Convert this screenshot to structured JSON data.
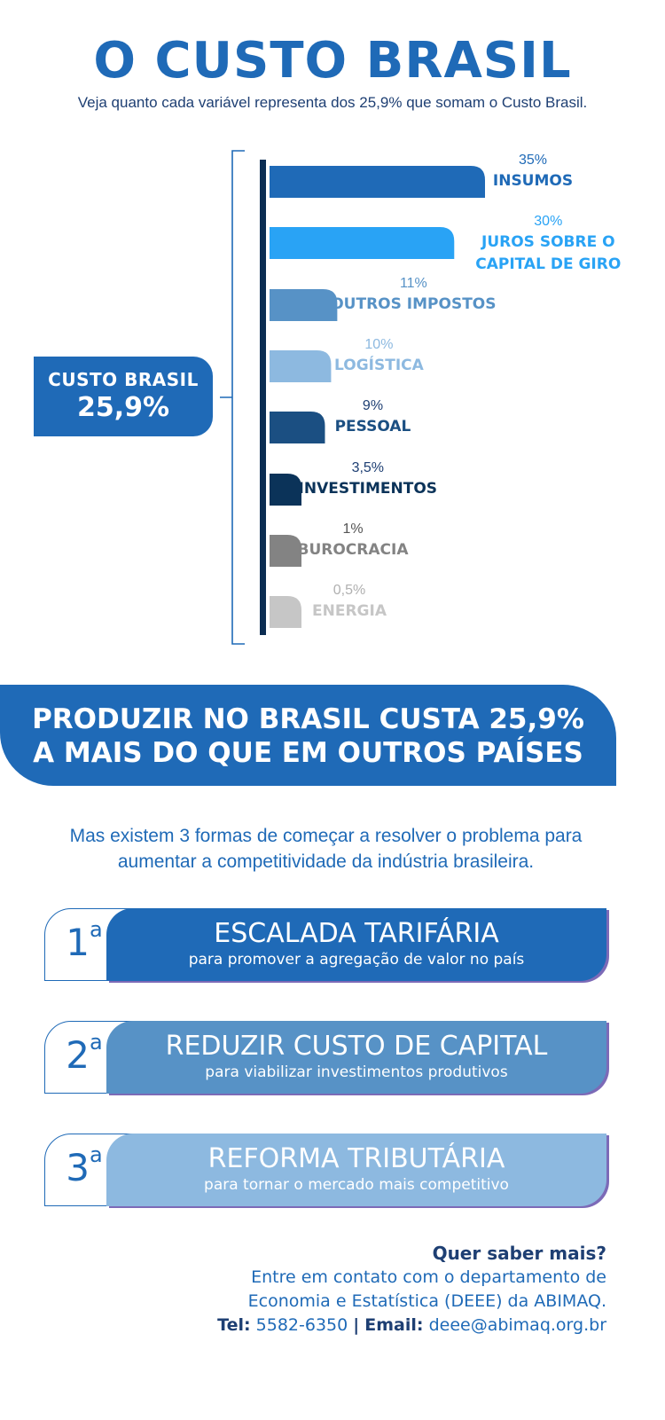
{
  "header": {
    "title": "O CUSTO BRASIL",
    "subtitle": "Veja quanto cada variável representa dos 25,9% que somam o Custo Brasil."
  },
  "total_box": {
    "label": "CUSTO BRASIL",
    "value": "25,9%"
  },
  "chart_data": {
    "type": "bar",
    "orientation": "horizontal",
    "categories": [
      "INSUMOS",
      "JUROS SOBRE O CAPITAL DE GIRO",
      "OUTROS IMPOSTOS",
      "LOGÍSTICA",
      "PESSOAL",
      "INVESTIMENTOS",
      "BUROCRACIA",
      "ENERGIA"
    ],
    "values": [
      35,
      30,
      11,
      10,
      9,
      3.5,
      1,
      0.5
    ],
    "value_labels": [
      "35%",
      "30%",
      "11%",
      "10%",
      "9%",
      "3,5%",
      "1%",
      "0,5%"
    ],
    "label_lines": [
      [
        "INSUMOS"
      ],
      [
        "JUROS SOBRE O",
        "CAPITAL DE GIRO"
      ],
      [
        "OUTROS IMPOSTOS"
      ],
      [
        "LOGÍSTICA"
      ],
      [
        "PESSOAL"
      ],
      [
        "INVESTIMENTOS"
      ],
      [
        "BUROCRACIA"
      ],
      [
        "ENERGIA"
      ]
    ],
    "colors": [
      "#1f6ab7",
      "#29a3f5",
      "#5792c6",
      "#8db9e0",
      "#1b4f82",
      "#0b3359",
      "#838383",
      "#c6c6c6"
    ],
    "label_colors": [
      "#1f6ab7",
      "#29a3f5",
      "#5792c6",
      "#8db9e0",
      "#1b4f82",
      "#0b3359",
      "#838383",
      "#c6c6c6"
    ],
    "value_colors": [
      "#1f6ab7",
      "#29a3f5",
      "#5792c6",
      "#8db9e0",
      "#1e3f73",
      "#1e3f73",
      "#555555",
      "#b0b0b0"
    ]
  },
  "banner": {
    "line1": "PRODUZIR NO BRASIL CUSTA 25,9%",
    "line2": "A MAIS DO QUE EM OUTROS PAÍSES"
  },
  "intro": {
    "line1": "Mas existem 3 formas de começar a resolver o problema para",
    "line2": "aumentar a competitividade da indústria brasileira."
  },
  "solutions": [
    {
      "num": "1",
      "sup": "a",
      "title": "ESCALADA TARIFÁRIA",
      "desc": "para promover a agregação de valor no país",
      "color": "#1f6ab7"
    },
    {
      "num": "2",
      "sup": "a",
      "title": "REDUZIR CUSTO DE CAPITAL",
      "desc": "para viabilizar investimentos produtivos",
      "color": "#5792c6"
    },
    {
      "num": "3",
      "sup": "a",
      "title": "REFORMA TRIBUTÁRIA",
      "desc": "para tornar o mercado mais competitivo",
      "color": "#8db9e0"
    }
  ],
  "contact": {
    "question": "Quer saber mais?",
    "line1": "Entre em contato com o departamento de",
    "line2": "Economia e Estatística (DEEE) da ABIMAQ.",
    "tel_label": "Tel:",
    "tel": "5582-6350",
    "separator": "|",
    "email_label": "Email:",
    "email": "deee@abimaq.org.br"
  }
}
